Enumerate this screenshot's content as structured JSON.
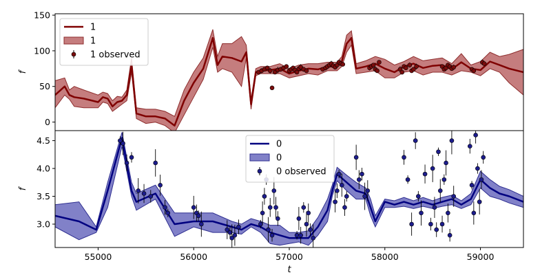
{
  "chart_data": [
    {
      "type": "line",
      "panel": "top",
      "xlim": [
        54550,
        59450
      ],
      "ylim": [
        -12,
        152
      ],
      "yticks": [
        0,
        50,
        100,
        150
      ],
      "ylabel": "f",
      "xlabel": "",
      "colors": {
        "line": "#7f0000",
        "band": "#b5585a",
        "band_edge": "#8e2d2d",
        "point": "#7a0c0c"
      },
      "legend": {
        "position": "top-left",
        "entries": [
          {
            "kind": "line",
            "label": "1"
          },
          {
            "kind": "band",
            "label": "1"
          },
          {
            "kind": "point",
            "label": "1 observed"
          }
        ]
      },
      "series": [
        {
          "kind": "line",
          "label": "1",
          "x": [
            54550,
            54650,
            54700,
            54750,
            54850,
            55000,
            55050,
            55100,
            55150,
            55200,
            55250,
            55300,
            55350,
            55400,
            55500,
            55600,
            55700,
            55800,
            55900,
            56000,
            56100,
            56200,
            56250,
            56300,
            56400,
            56500,
            56550,
            56600,
            56650,
            56700,
            56800,
            56900,
            57000,
            57100,
            57200,
            57300,
            57400,
            57500,
            57550,
            57600,
            57650,
            57700,
            57800,
            57900,
            58000,
            58100,
            58200,
            58300,
            58400,
            58500,
            58600,
            58700,
            58800,
            58900,
            59000,
            59100,
            59200,
            59300,
            59450
          ],
          "y": [
            38,
            50,
            38,
            35,
            33,
            28,
            35,
            33,
            22,
            28,
            30,
            38,
            80,
            12,
            8,
            8,
            5,
            -5,
            30,
            55,
            75,
            118,
            80,
            92,
            90,
            85,
            98,
            25,
            70,
            72,
            73,
            75,
            68,
            72,
            75,
            74,
            78,
            78,
            85,
            110,
            118,
            75,
            78,
            82,
            75,
            70,
            78,
            82,
            76,
            79,
            80,
            74,
            84,
            75,
            73,
            85,
            80,
            75,
            70
          ]
        },
        {
          "kind": "band",
          "label": "1",
          "lower": [
            20,
            38,
            32,
            22,
            20,
            20,
            28,
            26,
            15,
            20,
            25,
            30,
            70,
            5,
            -2,
            0,
            -5,
            -15,
            10,
            35,
            60,
            105,
            70,
            75,
            70,
            50,
            90,
            18,
            65,
            68,
            68,
            68,
            62,
            65,
            68,
            66,
            72,
            72,
            78,
            98,
            108,
            68,
            70,
            72,
            62,
            62,
            70,
            72,
            66,
            70,
            70,
            66,
            72,
            70,
            65,
            75,
            70,
            55,
            38
          ],
          "upper": [
            58,
            62,
            45,
            50,
            45,
            38,
            42,
            40,
            30,
            36,
            35,
            45,
            90,
            20,
            18,
            18,
            15,
            8,
            45,
            70,
            90,
            130,
            92,
            110,
            110,
            120,
            108,
            32,
            75,
            78,
            78,
            82,
            75,
            80,
            82,
            82,
            84,
            84,
            92,
            122,
            128,
            82,
            86,
            92,
            88,
            80,
            85,
            92,
            86,
            88,
            90,
            82,
            96,
            80,
            85,
            98,
            92,
            95,
            102
          ]
        },
        {
          "kind": "points",
          "label": "1 observed",
          "x": [
            56680,
            56710,
            56740,
            56770,
            56800,
            56820,
            56850,
            56880,
            56910,
            56940,
            56970,
            57000,
            57020,
            57040,
            57060,
            57080,
            57100,
            57120,
            57150,
            57180,
            57350,
            57380,
            57400,
            57420,
            57440,
            57460,
            57480,
            57500,
            57520,
            57540,
            57560,
            57840,
            57860,
            57880,
            57900,
            57920,
            57940,
            58160,
            58180,
            58200,
            58220,
            58260,
            58280,
            58300,
            58330,
            58600,
            58620,
            58640,
            58660,
            58680,
            58700,
            58720,
            58910,
            58930,
            59020,
            59040
          ],
          "y": [
            70,
            72,
            74,
            76,
            72,
            48,
            70,
            73,
            74,
            76,
            78,
            72,
            74,
            76,
            73,
            70,
            75,
            77,
            74,
            72,
            74,
            76,
            78,
            80,
            82,
            79,
            77,
            80,
            84,
            82,
            81,
            76,
            78,
            80,
            74,
            72,
            84,
            74,
            70,
            78,
            76,
            80,
            72,
            74,
            78,
            78,
            74,
            76,
            80,
            78,
            75,
            77,
            74,
            72,
            84,
            82
          ]
        }
      ]
    },
    {
      "type": "line",
      "panel": "bottom",
      "xlim": [
        54550,
        59450
      ],
      "ylim": [
        2.58,
        4.68
      ],
      "yticks": [
        3.0,
        3.5,
        4.0,
        4.5
      ],
      "xticks": [
        55000,
        56000,
        57000,
        58000,
        59000
      ],
      "ylabel": "f",
      "xlabel": "t",
      "colors": {
        "line": "#000080",
        "band": "#5d5db8",
        "band_edge": "#2e2e90",
        "point": "#1c1c8c",
        "error": "#000000"
      },
      "legend": {
        "position": "top-center",
        "entries": [
          {
            "kind": "line",
            "label": "0"
          },
          {
            "kind": "band",
            "label": "0"
          },
          {
            "kind": "point",
            "label": "0 observed"
          }
        ]
      },
      "series": [
        {
          "kind": "line",
          "label": "0",
          "x": [
            54550,
            54800,
            54980,
            55100,
            55250,
            55350,
            55400,
            55600,
            55800,
            56000,
            56200,
            56400,
            56500,
            56600,
            56700,
            56800,
            56900,
            57000,
            57100,
            57200,
            57300,
            57400,
            57450,
            57500,
            57600,
            57700,
            57800,
            57850,
            57900,
            58000,
            58100,
            58200,
            58300,
            58400,
            58500,
            58600,
            58700,
            58800,
            58900,
            59000,
            59100,
            59200,
            59300,
            59450
          ],
          "y": [
            3.15,
            3.05,
            2.9,
            3.6,
            4.55,
            3.6,
            3.4,
            3.55,
            3.0,
            3.05,
            3.05,
            2.95,
            2.9,
            3.0,
            2.95,
            2.85,
            2.8,
            2.75,
            2.75,
            2.75,
            2.95,
            3.25,
            3.6,
            3.9,
            3.75,
            3.6,
            3.55,
            3.3,
            3.05,
            3.4,
            3.35,
            3.4,
            3.35,
            3.4,
            3.35,
            3.4,
            3.45,
            3.35,
            3.45,
            3.8,
            3.65,
            3.55,
            3.5,
            3.4
          ]
        },
        {
          "kind": "band",
          "label": "0",
          "lower": [
            2.95,
            2.72,
            2.85,
            3.3,
            4.4,
            3.5,
            3.25,
            3.45,
            2.78,
            2.95,
            2.85,
            2.85,
            2.82,
            2.95,
            2.85,
            2.65,
            2.62,
            2.65,
            2.68,
            2.62,
            2.8,
            3.05,
            3.5,
            3.78,
            3.6,
            3.45,
            3.45,
            3.15,
            2.95,
            3.3,
            3.3,
            3.32,
            3.28,
            3.32,
            3.28,
            3.32,
            3.35,
            3.28,
            3.35,
            3.65,
            3.5,
            3.45,
            3.38,
            3.3
          ],
          "upper": [
            3.35,
            3.4,
            2.95,
            3.75,
            4.65,
            3.75,
            3.55,
            3.7,
            3.2,
            3.2,
            3.2,
            3.05,
            3.0,
            3.1,
            3.05,
            2.98,
            2.98,
            2.85,
            2.85,
            2.88,
            3.12,
            3.45,
            3.7,
            4.02,
            3.88,
            3.75,
            3.65,
            3.45,
            3.15,
            3.45,
            3.42,
            3.48,
            3.42,
            3.48,
            3.42,
            3.48,
            3.52,
            3.42,
            3.55,
            3.95,
            3.8,
            3.68,
            3.62,
            3.5
          ]
        },
        {
          "kind": "points",
          "label": "0 observed",
          "x": [
            55230,
            55260,
            55300,
            55350,
            55420,
            55480,
            55550,
            55600,
            55650,
            55700,
            55730,
            56000,
            56030,
            56050,
            56080,
            56350,
            56380,
            56400,
            56430,
            56470,
            56700,
            56720,
            56740,
            56760,
            56780,
            56800,
            56820,
            56840,
            56860,
            56880,
            57080,
            57100,
            57120,
            57150,
            57180,
            57200,
            57220,
            57250,
            57480,
            57500,
            57520,
            57550,
            57580,
            57600,
            57700,
            57730,
            57760,
            57790,
            57820,
            58200,
            58240,
            58280,
            58320,
            58350,
            58380,
            58420,
            58480,
            58500,
            58520,
            58540,
            58560,
            58580,
            58600,
            58620,
            58640,
            58660,
            58680,
            58700,
            58720,
            58890,
            58910,
            58930,
            58950,
            58970,
            58990,
            59010,
            59030
          ],
          "y": [
            4.5,
            4.45,
            4.1,
            4.2,
            3.6,
            3.55,
            3.5,
            4.1,
            3.7,
            3.3,
            3.2,
            3.3,
            3.2,
            3.15,
            3.0,
            2.9,
            2.85,
            2.75,
            2.8,
            2.95,
            3.0,
            3.2,
            3.5,
            3.8,
            2.9,
            3.3,
            2.8,
            3.6,
            3.3,
            3.1,
            2.8,
            3.1,
            2.8,
            3.3,
            3.0,
            3.2,
            2.9,
            2.75,
            3.4,
            3.6,
            3.9,
            3.7,
            3.3,
            3.5,
            4.2,
            3.8,
            3.9,
            3.5,
            3.6,
            4.2,
            3.8,
            3.0,
            4.5,
            3.5,
            3.2,
            3.9,
            3.0,
            4.0,
            3.3,
            2.9,
            4.3,
            3.6,
            3.0,
            3.8,
            4.1,
            3.2,
            2.8,
            4.5,
            3.5,
            4.4,
            3.7,
            3.2,
            4.6,
            4.0,
            3.4,
            3.8,
            4.2
          ]
        }
      ]
    }
  ]
}
